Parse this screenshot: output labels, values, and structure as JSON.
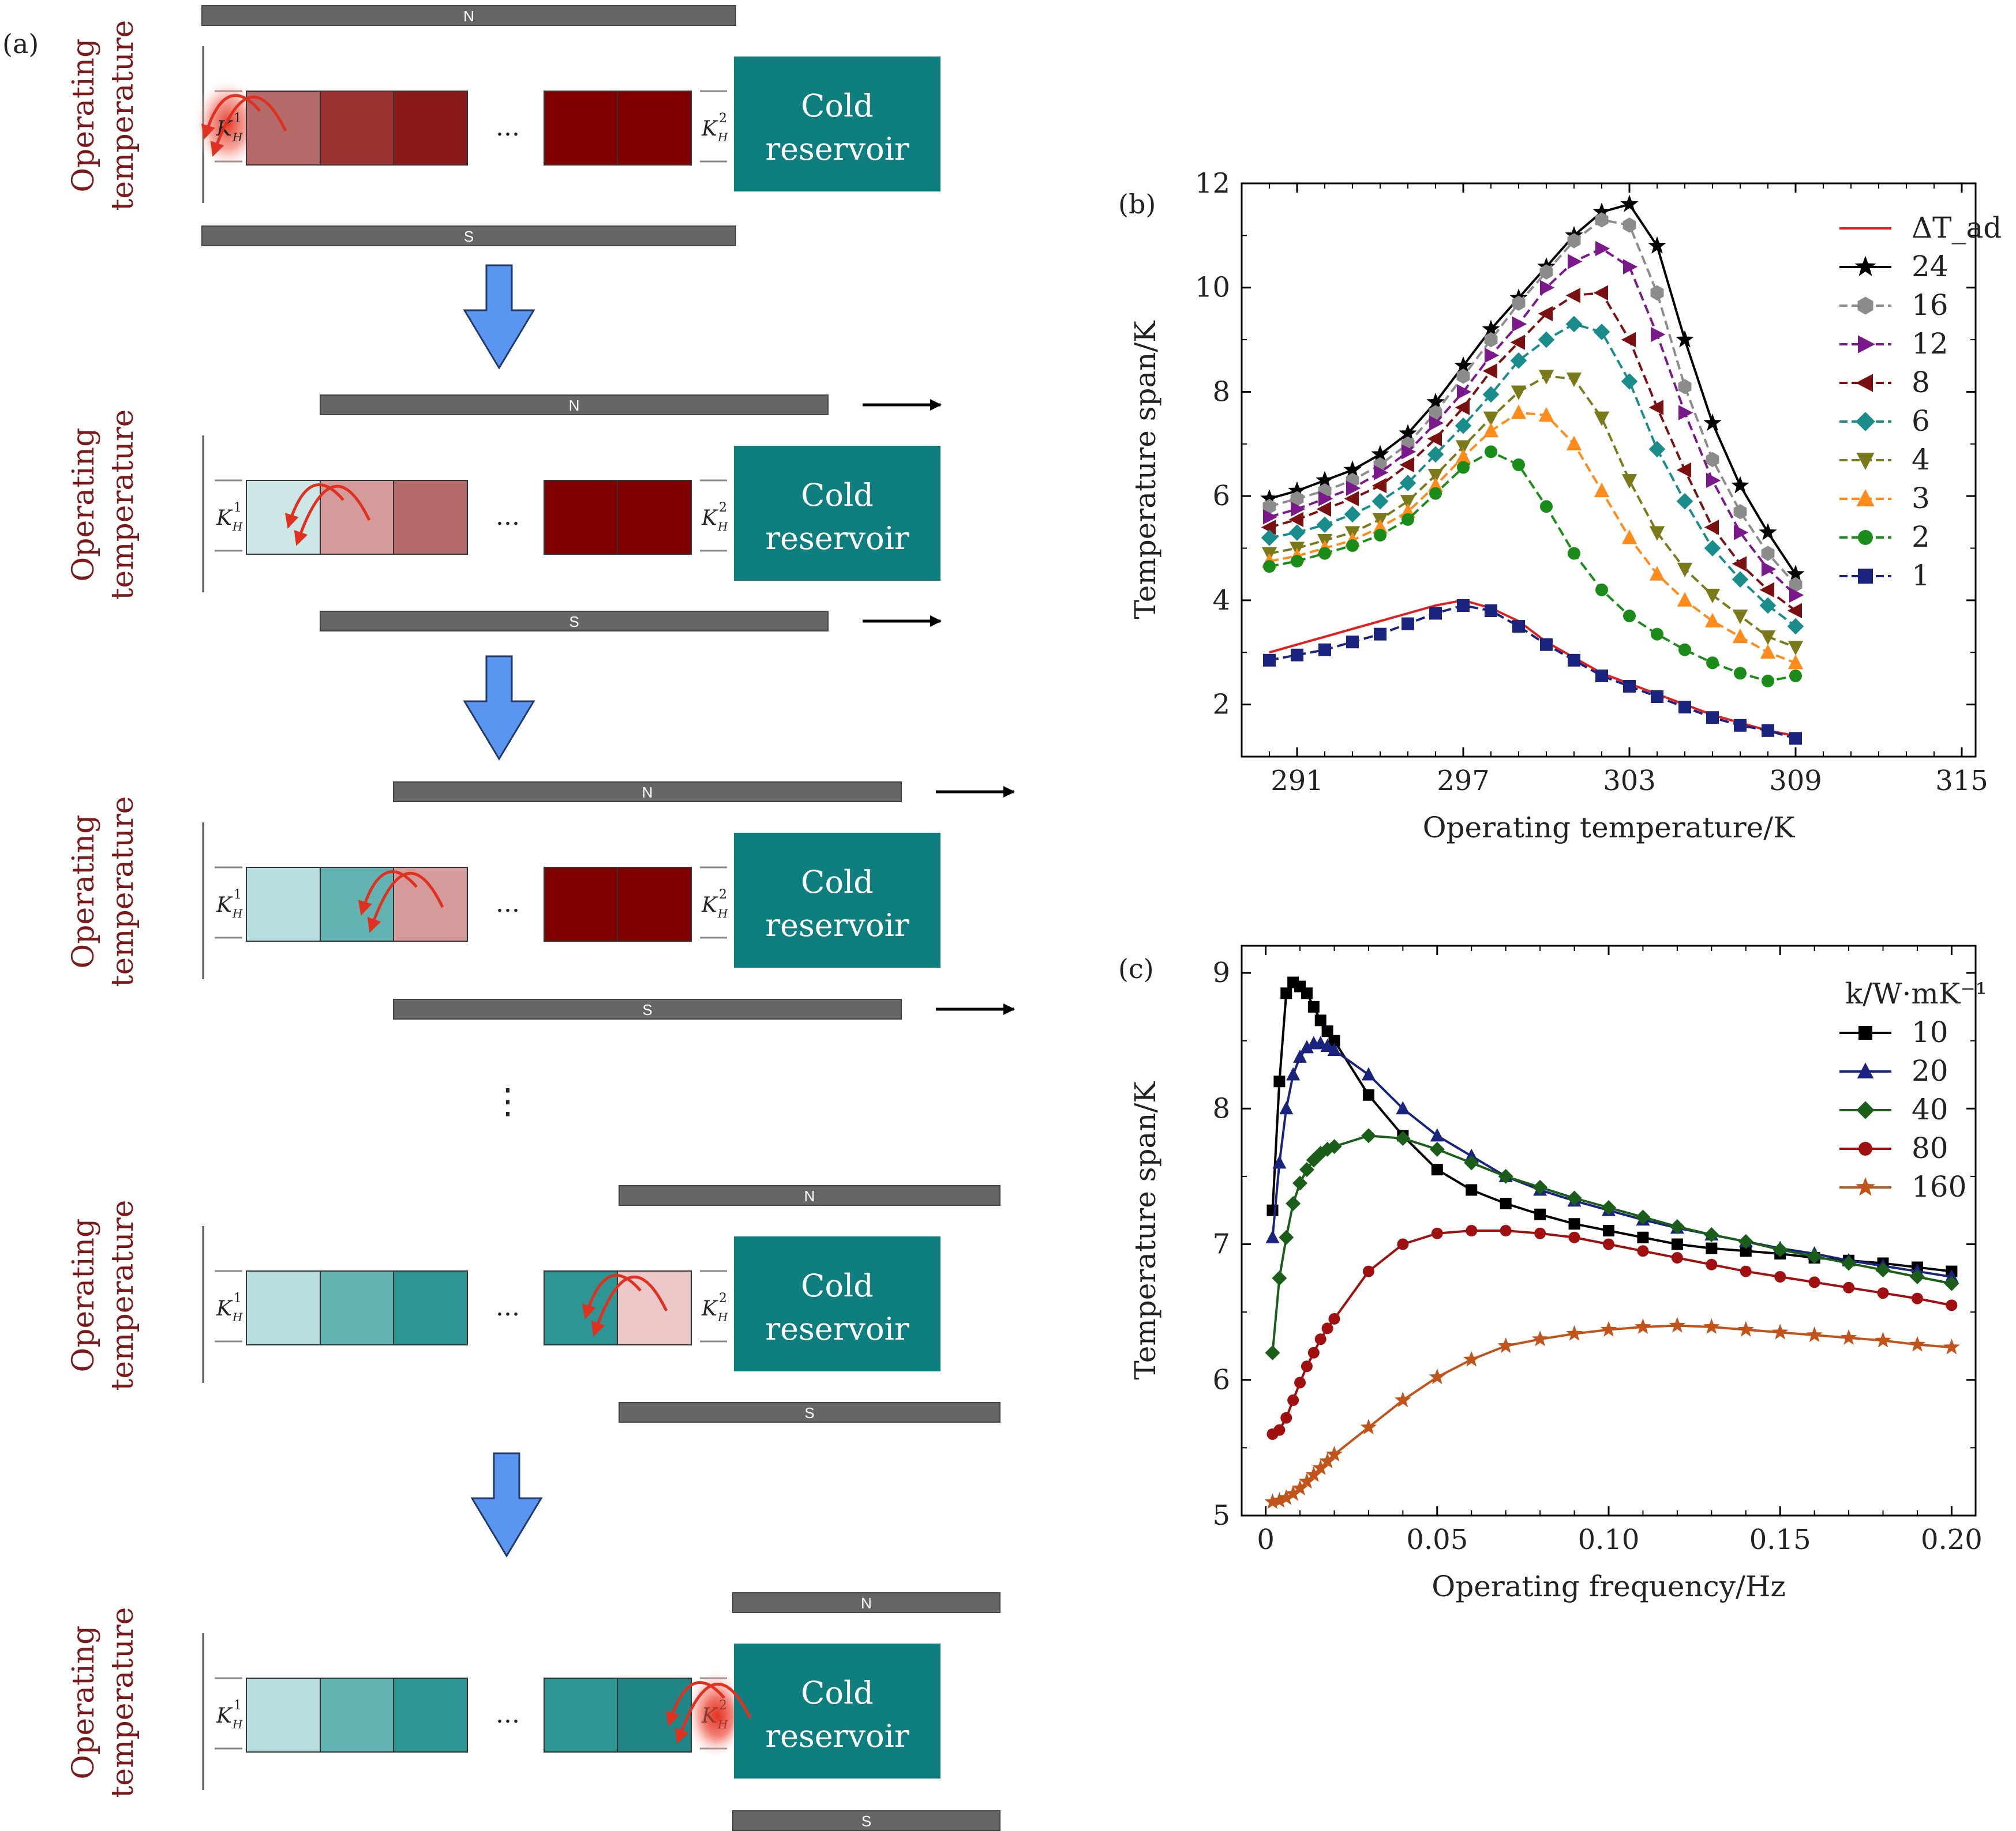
{
  "diagram": {
    "panel_label": "(a)",
    "side_label_line1": "Operating",
    "side_label_line2": "temperature",
    "reservoir_line1": "Cold",
    "reservoir_line2": "reservoir",
    "magnet_north": "N",
    "magnet_south": "S",
    "ellipsis": "...",
    "vertical_ellipsis": "⋮",
    "k_left": "K",
    "k_left_sup": "1",
    "k_left_sub": "H",
    "k_right": "K",
    "k_right_sup": "2",
    "k_right_sub": "H",
    "colors": {
      "label_red": "#7a1a1a",
      "reservoir_teal": "#0f7e7e",
      "magnet_gray": "#666666",
      "arrow_blue": "#5a96f0",
      "hot_red": "#e03020"
    }
  },
  "chart_data": [
    {
      "panel_label": "(b)",
      "type": "line",
      "xlabel": "Operating temperature/K",
      "ylabel": "Temperature span/K",
      "xlim": [
        289,
        315.5
      ],
      "ylim": [
        1,
        12
      ],
      "xticks": [
        291,
        297,
        303,
        309,
        315
      ],
      "yticks": [
        2,
        4,
        6,
        8,
        10,
        12
      ],
      "x": [
        290,
        291,
        292,
        293,
        294,
        295,
        296,
        297,
        298,
        299,
        300,
        301,
        302,
        303,
        304,
        305,
        306,
        307,
        308,
        309
      ],
      "legend_position": "top-right",
      "series": [
        {
          "name": "ΔT_ad",
          "color": "#e0201e",
          "marker": "none",
          "dash": false,
          "values": [
            3.0,
            3.15,
            3.3,
            3.45,
            3.6,
            3.75,
            3.9,
            4.0,
            3.85,
            3.6,
            3.2,
            2.9,
            2.6,
            2.4,
            2.2,
            2.0,
            1.8,
            1.65,
            1.5,
            1.4
          ]
        },
        {
          "name": "24",
          "color": "#000000",
          "marker": "star",
          "dash": false,
          "values": [
            5.95,
            6.1,
            6.3,
            6.5,
            6.8,
            7.2,
            7.8,
            8.5,
            9.2,
            9.8,
            10.4,
            11.0,
            11.45,
            11.6,
            10.8,
            9.0,
            7.4,
            6.2,
            5.3,
            4.5
          ]
        },
        {
          "name": "16",
          "color": "#8c8c8c",
          "marker": "hexagon",
          "dash": true,
          "values": [
            5.8,
            5.95,
            6.1,
            6.3,
            6.6,
            7.0,
            7.6,
            8.3,
            9.0,
            9.7,
            10.3,
            10.9,
            11.3,
            11.2,
            9.9,
            8.1,
            6.7,
            5.7,
            4.9,
            4.3
          ]
        },
        {
          "name": "12",
          "color": "#7a1a8a",
          "marker": "triangle-right",
          "dash": true,
          "values": [
            5.6,
            5.75,
            5.95,
            6.15,
            6.45,
            6.85,
            7.4,
            8.0,
            8.7,
            9.3,
            10.0,
            10.5,
            10.75,
            10.4,
            9.1,
            7.6,
            6.3,
            5.3,
            4.6,
            4.1
          ]
        },
        {
          "name": "8",
          "color": "#7a1010",
          "marker": "triangle-left",
          "dash": true,
          "values": [
            5.4,
            5.55,
            5.75,
            5.95,
            6.2,
            6.6,
            7.1,
            7.7,
            8.4,
            8.95,
            9.5,
            9.85,
            9.9,
            9.0,
            7.7,
            6.5,
            5.4,
            4.7,
            4.2,
            3.8
          ]
        },
        {
          "name": "6",
          "color": "#1a8c8c",
          "marker": "diamond",
          "dash": true,
          "values": [
            5.2,
            5.3,
            5.45,
            5.65,
            5.9,
            6.25,
            6.8,
            7.35,
            7.95,
            8.6,
            9.0,
            9.3,
            9.15,
            8.2,
            6.9,
            5.9,
            5.0,
            4.4,
            3.9,
            3.5
          ]
        },
        {
          "name": "4",
          "color": "#7a7a1a",
          "marker": "triangle-down",
          "dash": true,
          "values": [
            4.9,
            5.0,
            5.15,
            5.3,
            5.55,
            5.9,
            6.4,
            6.95,
            7.5,
            8.0,
            8.3,
            8.25,
            7.5,
            6.3,
            5.3,
            4.6,
            4.1,
            3.7,
            3.3,
            3.1
          ]
        },
        {
          "name": "3",
          "color": "#ff8c1a",
          "marker": "triangle-up",
          "dash": true,
          "values": [
            4.75,
            4.85,
            5.0,
            5.15,
            5.4,
            5.7,
            6.2,
            6.75,
            7.25,
            7.6,
            7.55,
            7.0,
            6.1,
            5.2,
            4.5,
            4.0,
            3.6,
            3.3,
            3.0,
            2.8
          ]
        },
        {
          "name": "2",
          "color": "#1a8c1a",
          "marker": "circle",
          "dash": true,
          "values": [
            4.65,
            4.75,
            4.9,
            5.05,
            5.25,
            5.55,
            6.05,
            6.55,
            6.85,
            6.6,
            5.8,
            4.9,
            4.2,
            3.7,
            3.35,
            3.05,
            2.8,
            2.6,
            2.45,
            2.55
          ]
        },
        {
          "name": "1",
          "color": "#1a237e",
          "marker": "square",
          "dash": true,
          "values": [
            2.85,
            2.95,
            3.05,
            3.2,
            3.35,
            3.55,
            3.75,
            3.9,
            3.8,
            3.5,
            3.15,
            2.85,
            2.55,
            2.35,
            2.15,
            1.95,
            1.75,
            1.6,
            1.5,
            1.35
          ]
        }
      ]
    },
    {
      "panel_label": "(c)",
      "type": "line",
      "xlabel": "Operating frequency/Hz",
      "ylabel": "Temperature span/K",
      "legend_title": "k/W·mK⁻¹",
      "xlim": [
        -0.007,
        0.207
      ],
      "ylim": [
        5,
        9.2
      ],
      "xticks": [
        0,
        0.05,
        0.1,
        0.15,
        0.2
      ],
      "xtick_labels": [
        "0",
        "0.05",
        "0.10",
        "0.15",
        "0.20"
      ],
      "yticks": [
        5,
        6,
        7,
        8,
        9
      ],
      "legend_position": "top-right",
      "series": [
        {
          "name": "10",
          "color": "#000000",
          "marker": "square",
          "x": [
            0.002,
            0.004,
            0.006,
            0.008,
            0.01,
            0.012,
            0.014,
            0.016,
            0.018,
            0.02,
            0.03,
            0.04,
            0.05,
            0.06,
            0.07,
            0.08,
            0.09,
            0.1,
            0.11,
            0.12,
            0.13,
            0.14,
            0.15,
            0.16,
            0.17,
            0.18,
            0.19,
            0.2
          ],
          "values": [
            7.25,
            8.2,
            8.85,
            8.93,
            8.9,
            8.85,
            8.75,
            8.65,
            8.57,
            8.5,
            8.1,
            7.8,
            7.55,
            7.4,
            7.3,
            7.22,
            7.15,
            7.1,
            7.05,
            7.0,
            6.97,
            6.95,
            6.93,
            6.9,
            6.88,
            6.86,
            6.83,
            6.8
          ]
        },
        {
          "name": "20",
          "color": "#1a237e",
          "marker": "triangle-up",
          "x": [
            0.002,
            0.004,
            0.006,
            0.008,
            0.01,
            0.012,
            0.014,
            0.016,
            0.018,
            0.02,
            0.03,
            0.04,
            0.05,
            0.06,
            0.07,
            0.08,
            0.09,
            0.1,
            0.11,
            0.12,
            0.13,
            0.14,
            0.15,
            0.16,
            0.17,
            0.18,
            0.19,
            0.2
          ],
          "values": [
            7.05,
            7.6,
            8.0,
            8.25,
            8.38,
            8.45,
            8.48,
            8.48,
            8.46,
            8.43,
            8.25,
            8.0,
            7.8,
            7.65,
            7.5,
            7.4,
            7.32,
            7.25,
            7.18,
            7.12,
            7.07,
            7.02,
            6.97,
            6.93,
            6.88,
            6.84,
            6.8,
            6.76
          ]
        },
        {
          "name": "40",
          "color": "#1a5e1a",
          "marker": "diamond",
          "x": [
            0.002,
            0.004,
            0.006,
            0.008,
            0.01,
            0.012,
            0.014,
            0.016,
            0.018,
            0.02,
            0.03,
            0.04,
            0.05,
            0.06,
            0.07,
            0.08,
            0.09,
            0.1,
            0.11,
            0.12,
            0.13,
            0.14,
            0.15,
            0.16,
            0.17,
            0.18,
            0.19,
            0.2
          ],
          "values": [
            6.2,
            6.75,
            7.05,
            7.3,
            7.45,
            7.55,
            7.62,
            7.67,
            7.7,
            7.72,
            7.8,
            7.78,
            7.7,
            7.6,
            7.5,
            7.42,
            7.34,
            7.27,
            7.2,
            7.13,
            7.07,
            7.02,
            6.96,
            6.91,
            6.86,
            6.81,
            6.76,
            6.71
          ]
        },
        {
          "name": "80",
          "color": "#a01010",
          "marker": "circle",
          "x": [
            0.002,
            0.004,
            0.006,
            0.008,
            0.01,
            0.012,
            0.014,
            0.016,
            0.018,
            0.02,
            0.03,
            0.04,
            0.05,
            0.06,
            0.07,
            0.08,
            0.09,
            0.1,
            0.11,
            0.12,
            0.13,
            0.14,
            0.15,
            0.16,
            0.17,
            0.18,
            0.19,
            0.2
          ],
          "values": [
            5.6,
            5.63,
            5.72,
            5.85,
            5.98,
            6.1,
            6.2,
            6.3,
            6.38,
            6.45,
            6.8,
            7.0,
            7.08,
            7.1,
            7.1,
            7.08,
            7.05,
            7.0,
            6.95,
            6.9,
            6.85,
            6.8,
            6.76,
            6.72,
            6.68,
            6.64,
            6.6,
            6.55
          ]
        },
        {
          "name": "160",
          "color": "#c0541a",
          "marker": "star",
          "x": [
            0.002,
            0.004,
            0.006,
            0.008,
            0.01,
            0.012,
            0.014,
            0.016,
            0.018,
            0.02,
            0.03,
            0.04,
            0.05,
            0.06,
            0.07,
            0.08,
            0.09,
            0.1,
            0.11,
            0.12,
            0.13,
            0.14,
            0.15,
            0.16,
            0.17,
            0.18,
            0.19,
            0.2
          ],
          "values": [
            5.1,
            5.11,
            5.13,
            5.16,
            5.2,
            5.25,
            5.3,
            5.35,
            5.4,
            5.45,
            5.65,
            5.85,
            6.02,
            6.15,
            6.25,
            6.3,
            6.34,
            6.37,
            6.39,
            6.4,
            6.39,
            6.37,
            6.35,
            6.33,
            6.31,
            6.29,
            6.26,
            6.24
          ]
        }
      ]
    }
  ]
}
